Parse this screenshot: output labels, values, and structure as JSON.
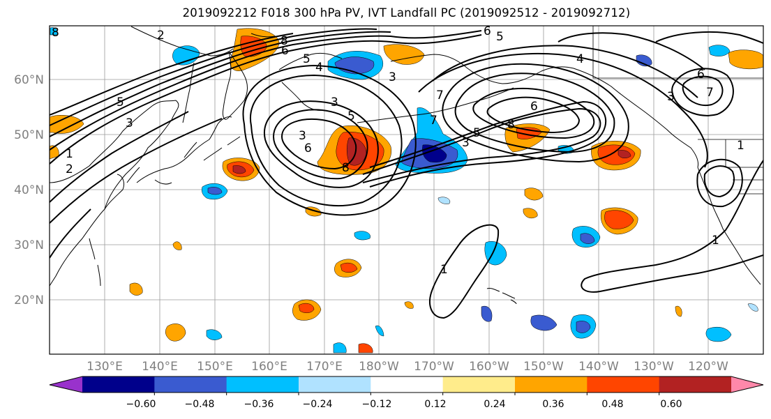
{
  "title": "2019092212 F018 300 hPa PV, IVT Landfall PC (2019092512 - 2019092712)",
  "lat_labels": [
    "60°N",
    "50°N",
    "40°N",
    "30°N",
    "20°N"
  ],
  "lon_labels": [
    "130°E",
    "140°E",
    "150°E",
    "160°E",
    "170°E",
    "180°W",
    "170°W",
    "160°W",
    "150°W",
    "140°W",
    "130°W",
    "120°W"
  ],
  "contour_labels": [
    "8",
    "2",
    "8",
    "6",
    "5",
    "4",
    "6",
    "5",
    "4",
    "3",
    "7",
    "3",
    "5",
    "3",
    "6",
    "8",
    "3",
    "5",
    "7",
    "6",
    "8",
    "5",
    "3",
    "3",
    "1",
    "2",
    "6",
    "7",
    "1",
    "1",
    "1"
  ],
  "colorbar": {
    "tick_labels": [
      "−0.60",
      "−0.48",
      "−0.36",
      "−0.24",
      "−0.12",
      "0.12",
      "0.24",
      "0.36",
      "0.48",
      "0.60"
    ],
    "colors": [
      "#9932cc",
      "#00008b",
      "#3a5bd0",
      "#00bfff",
      "#b0e2ff",
      "#ffffff",
      "#ffec8b",
      "#ffa500",
      "#ff4500",
      "#b22222",
      "#ff88aa"
    ]
  },
  "colors": {
    "neg_strong": "#3a5bd0",
    "neg_mid": "#00bfff",
    "neg_light": "#b0e2ff",
    "pos_light": "#ffec8b",
    "pos_mid": "#ffa500",
    "pos_strong": "#ff4500",
    "pos_max": "#b22222",
    "neg_max": "#00008b"
  }
}
